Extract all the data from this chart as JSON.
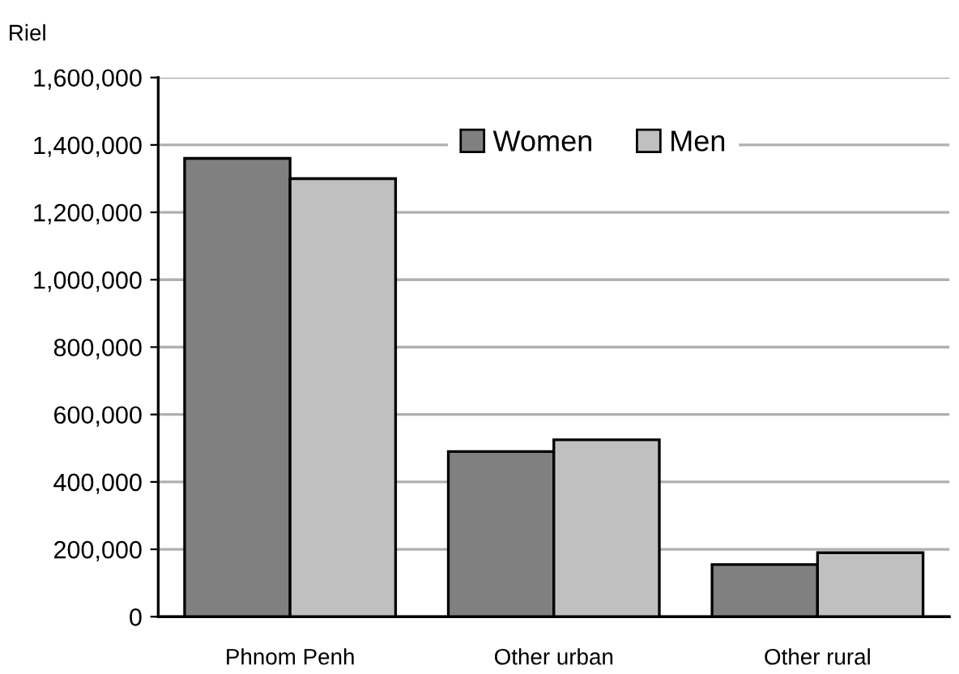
{
  "chart_data": {
    "type": "bar",
    "ylabel": "Riel",
    "categories": [
      "Phnom Penh",
      "Other urban",
      "Other rural"
    ],
    "series": [
      {
        "name": "Women",
        "color": "#808080",
        "values": [
          1360000,
          490000,
          155000
        ]
      },
      {
        "name": "Men",
        "color": "#c0c0c0",
        "values": [
          1300000,
          525000,
          190000
        ]
      }
    ],
    "ylim": [
      0,
      1600000
    ],
    "yticks": [
      {
        "value": 0,
        "label": "0"
      },
      {
        "value": 200000,
        "label": "200,000"
      },
      {
        "value": 400000,
        "label": "400,000"
      },
      {
        "value": 600000,
        "label": "600,000"
      },
      {
        "value": 800000,
        "label": "800,000"
      },
      {
        "value": 1000000,
        "label": "1,000,000"
      },
      {
        "value": 1200000,
        "label": "1,200,000"
      },
      {
        "value": 1400000,
        "label": "1,400,000"
      },
      {
        "value": 1600000,
        "label": "1,600,000"
      }
    ],
    "grid": "y",
    "legend": "top"
  }
}
